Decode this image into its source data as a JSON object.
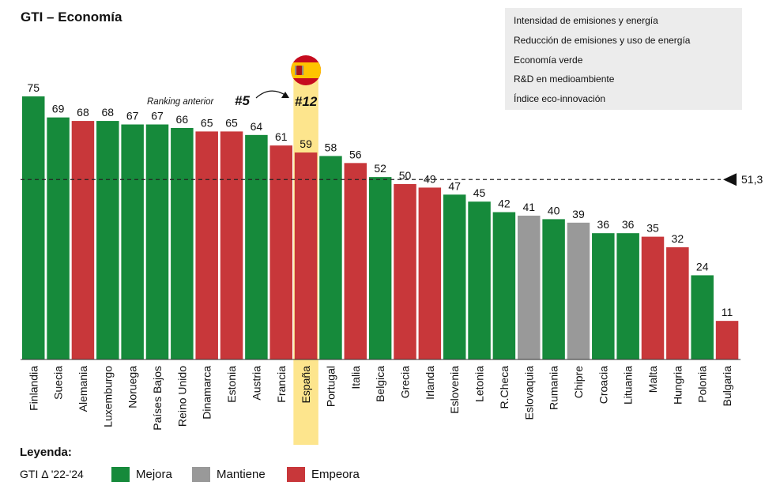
{
  "colors": {
    "Mejora": "#168a3b",
    "Mantiene": "#999999",
    "Empeora": "#c8373a",
    "highlight": "#fde58d",
    "avg_line": "#222222"
  },
  "info_box": {
    "items": [
      "Intensidad de emisiones y energía",
      "Reducción de emisiones y uso de energía",
      "Economía verde",
      "R&D en medioambiente",
      "Índice eco-innovación"
    ]
  },
  "annotation": {
    "previous_label": "Ranking anterior",
    "previous_rank": "#5",
    "current_rank": "#12",
    "highlight_country": "España",
    "flag_icon": "spain-flag-icon"
  },
  "legend": {
    "title": "Leyenda:",
    "caption": "GTI Δ '22-'24",
    "entries": [
      "Mejora",
      "Mantiene",
      "Empeora"
    ]
  },
  "chart_data": {
    "type": "bar",
    "title": "GTI – Economía",
    "categories": [
      "Finlandia",
      "Suecia",
      "Alemania",
      "Luxemburgo",
      "Noruega",
      "Países Bajos",
      "Reino Unido",
      "Dinamarca",
      "Estonia",
      "Austria",
      "Francia",
      "España",
      "Portugal",
      "Italia",
      "Belgica",
      "Grecia",
      "Irlanda",
      "Eslovenia",
      "Letonia",
      "R.Checa",
      "Eslovaquia",
      "Rumania",
      "Chipre",
      "Croacia",
      "Lituania",
      "Malta",
      "Hungria",
      "Polonia",
      "Bulgaria"
    ],
    "values": [
      75,
      69,
      68,
      68,
      67,
      67,
      66,
      65,
      65,
      64,
      61,
      59,
      58,
      56,
      52,
      50,
      49,
      47,
      45,
      42,
      41,
      40,
      39,
      36,
      36,
      35,
      32,
      24,
      11
    ],
    "status": [
      "Mejora",
      "Mejora",
      "Empeora",
      "Mejora",
      "Mejora",
      "Mejora",
      "Mejora",
      "Empeora",
      "Empeora",
      "Mejora",
      "Empeora",
      "Empeora",
      "Mejora",
      "Empeora",
      "Mejora",
      "Empeora",
      "Empeora",
      "Mejora",
      "Mejora",
      "Mejora",
      "Mantiene",
      "Mejora",
      "Mantiene",
      "Mejora",
      "Mejora",
      "Empeora",
      "Empeora",
      "Mejora",
      "Empeora"
    ],
    "average": 51.3,
    "average_label": "51,3",
    "ylim": [
      0,
      75
    ],
    "xlabel": "",
    "ylabel": "",
    "grid": false
  }
}
